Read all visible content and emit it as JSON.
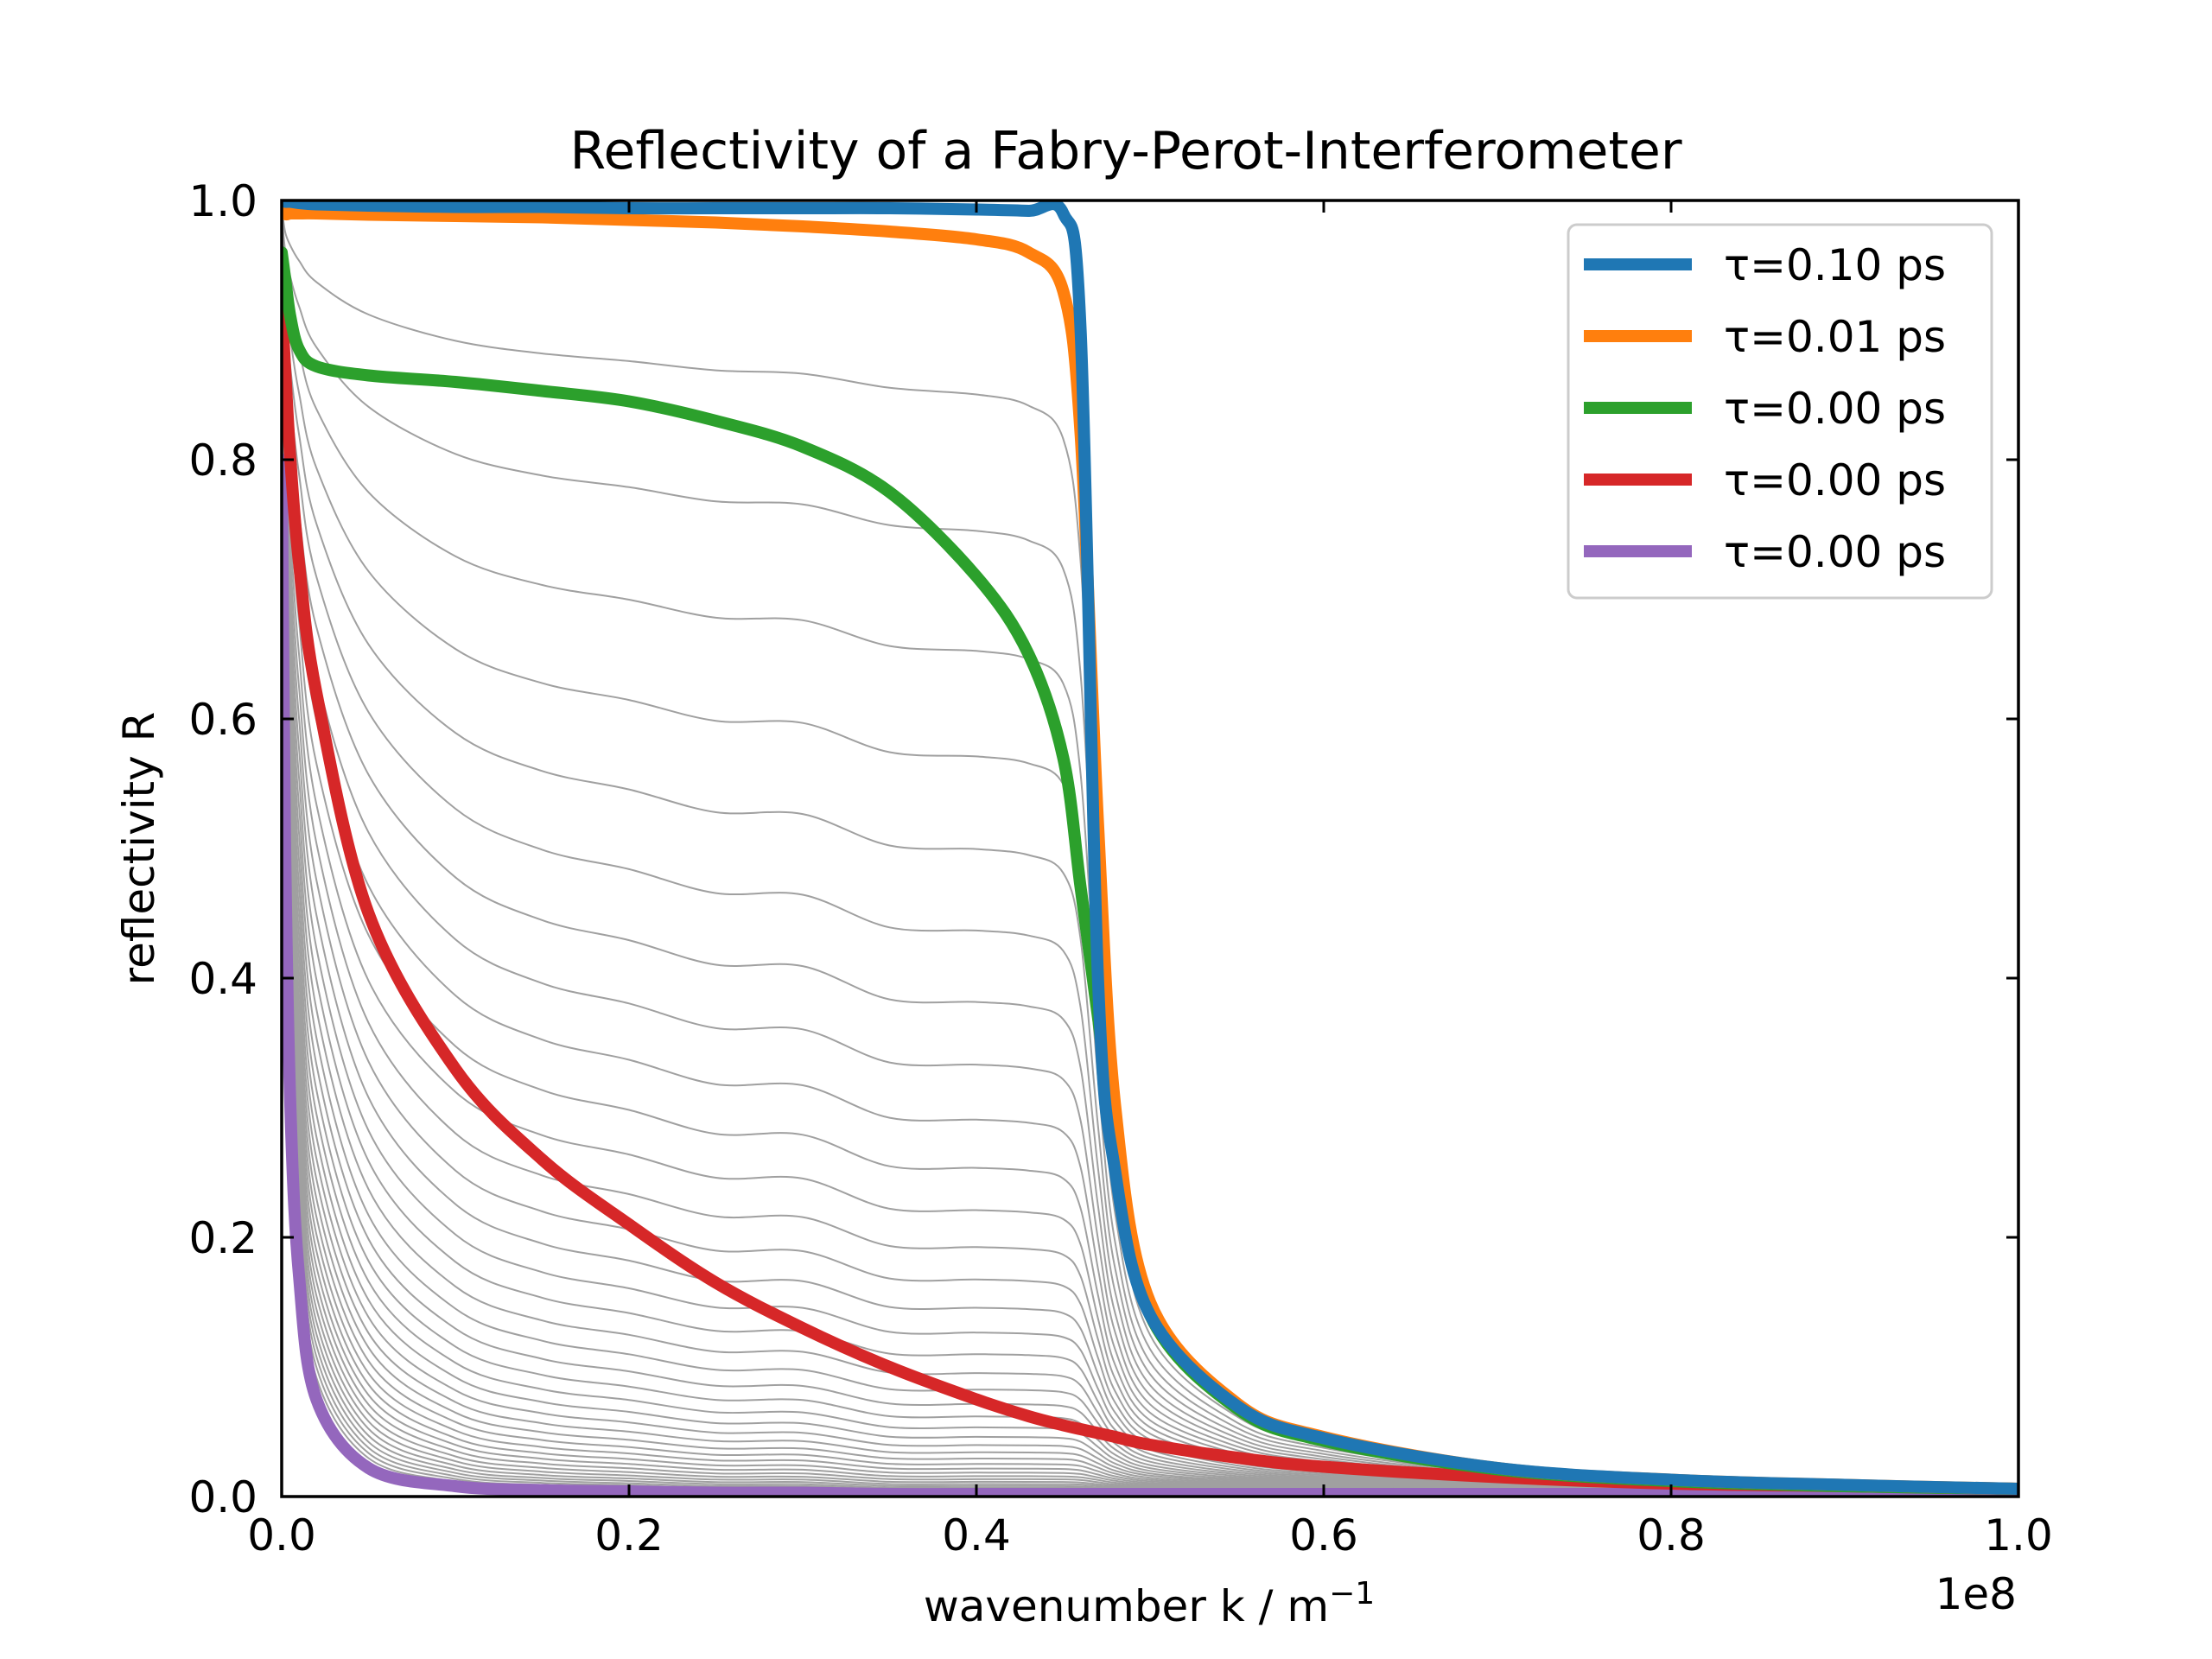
{
  "chart_data": {
    "type": "line",
    "title": "Reflectivity of a Fabry-Perot-Interferometer",
    "xlabel": "wavenumber k / m",
    "xlabel_superscript": "−1",
    "ylabel": "reflectivity R",
    "x_offset_label": "1e8",
    "xlim": [
      0.0,
      1.0
    ],
    "ylim": [
      0.0,
      1.0
    ],
    "x_ticks": [
      "0.0",
      "0.2",
      "0.4",
      "0.6",
      "0.8",
      "1.0"
    ],
    "y_ticks": [
      "0.0",
      "0.2",
      "0.4",
      "0.6",
      "0.8",
      "1.0"
    ],
    "grid": false,
    "legend_position": "top-right",
    "x": [
      0,
      0.002,
      0.005,
      0.01,
      0.02,
      0.05,
      0.1,
      0.15,
      0.2,
      0.25,
      0.3,
      0.35,
      0.4,
      0.43,
      0.45,
      0.46,
      0.47,
      0.48,
      0.5,
      0.55,
      0.6,
      0.7,
      0.8,
      0.9,
      1.0
    ],
    "series": [
      {
        "name": "τ=0.10 ps",
        "color": "#1f77b4",
        "values": [
          1.0,
          0.999,
          0.999,
          0.998,
          0.997,
          0.996,
          0.995,
          0.995,
          0.994,
          0.994,
          0.994,
          0.994,
          0.993,
          0.992,
          0.99,
          0.9,
          0.4,
          0.25,
          0.14,
          0.07,
          0.045,
          0.022,
          0.013,
          0.009,
          0.006
        ]
      },
      {
        "name": "τ=0.01 ps",
        "color": "#ff7f0e",
        "values": [
          1.0,
          0.99,
          0.99,
          0.99,
          0.99,
          0.989,
          0.988,
          0.987,
          0.985,
          0.983,
          0.98,
          0.976,
          0.97,
          0.96,
          0.93,
          0.82,
          0.52,
          0.3,
          0.15,
          0.072,
          0.046,
          0.022,
          0.013,
          0.009,
          0.006
        ]
      },
      {
        "name": "τ=0.00 ps",
        "color": "#2ca02c",
        "values": [
          0.96,
          0.94,
          0.91,
          0.885,
          0.872,
          0.865,
          0.86,
          0.853,
          0.845,
          0.83,
          0.81,
          0.775,
          0.71,
          0.65,
          0.57,
          0.47,
          0.37,
          0.27,
          0.14,
          0.068,
          0.043,
          0.021,
          0.012,
          0.008,
          0.006
        ]
      },
      {
        "name": "τ=0.00 ps",
        "color": "#d62728",
        "values": [
          0.92,
          0.87,
          0.8,
          0.72,
          0.62,
          0.45,
          0.33,
          0.26,
          0.21,
          0.165,
          0.13,
          0.1,
          0.075,
          0.062,
          0.055,
          0.052,
          0.049,
          0.046,
          0.04,
          0.03,
          0.023,
          0.015,
          0.01,
          0.008,
          0.006
        ]
      },
      {
        "name": "τ=0.00 ps",
        "color": "#9467bd",
        "values": [
          0.8,
          0.5,
          0.3,
          0.17,
          0.075,
          0.022,
          0.008,
          0.005,
          0.004,
          0.003,
          0.003,
          0.002,
          0.002,
          0.002,
          0.002,
          0.002,
          0.002,
          0.002,
          0.002,
          0.002,
          0.002,
          0.002,
          0.002,
          0.002,
          0.002
        ]
      }
    ],
    "background_curve_count": 40
  }
}
